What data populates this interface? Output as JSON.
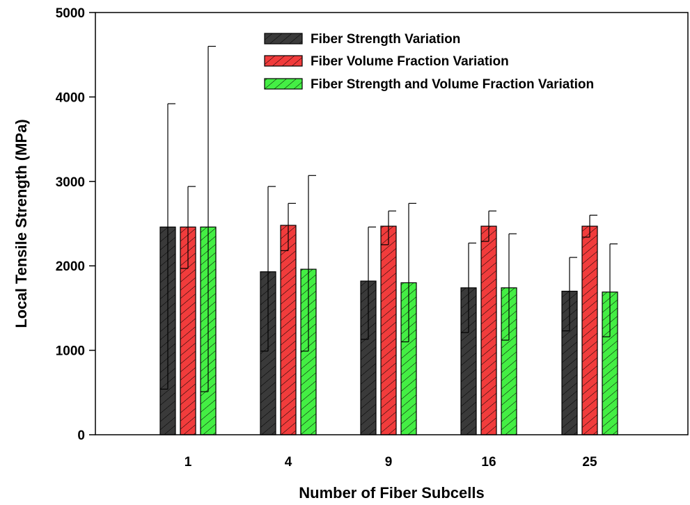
{
  "chart_data": {
    "type": "bar",
    "xlabel": "Number of Fiber Subcells",
    "ylabel": "Local Tensile Strength (MPa)",
    "ylim": [
      0,
      5000
    ],
    "yticks": [
      0,
      1000,
      2000,
      3000,
      4000,
      5000
    ],
    "categories": [
      "1",
      "4",
      "9",
      "16",
      "25"
    ],
    "grid": false,
    "legend_position": "top-right",
    "series": [
      {
        "name": "Fiber Strength Variation",
        "color": "#3a3a3a",
        "values": [
          2460,
          1930,
          1820,
          1740,
          1700
        ],
        "error_upper": [
          3920,
          2940,
          2460,
          2270,
          2100
        ],
        "error_lower": [
          540,
          990,
          1130,
          1210,
          1230
        ]
      },
      {
        "name": "Fiber Volume Fraction Variation",
        "color": "#f13c3c",
        "values": [
          2460,
          2480,
          2470,
          2470,
          2470
        ],
        "error_upper": [
          2940,
          2740,
          2650,
          2650,
          2600
        ],
        "error_lower": [
          1970,
          2180,
          2250,
          2290,
          2340
        ]
      },
      {
        "name": "Fiber Strength and Volume Fraction Variation",
        "color": "#44ee44",
        "values": [
          2460,
          1960,
          1800,
          1740,
          1690
        ],
        "error_upper": [
          4600,
          3070,
          2740,
          2380,
          2260
        ],
        "error_lower": [
          510,
          990,
          1100,
          1120,
          1160
        ]
      }
    ]
  }
}
